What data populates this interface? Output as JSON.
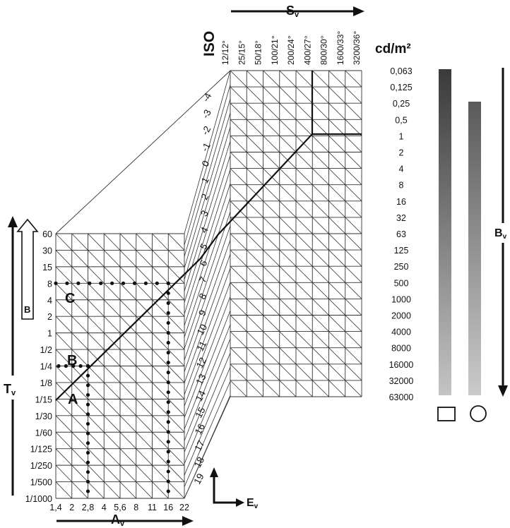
{
  "iso_heading": "ISO",
  "luminance_unit": "cd/m²",
  "iso_values": [
    "12/12°",
    "25/15°",
    "50/18°",
    "100/21°",
    "200/24°",
    "400/27°",
    "800/30°",
    "1600/33°",
    "3200/36°"
  ],
  "luminance_values": [
    "0,063",
    "0,125",
    "0,25",
    "0,5",
    "1",
    "2",
    "4",
    "8",
    "16",
    "32",
    "63",
    "125",
    "250",
    "500",
    "1000",
    "2000",
    "4000",
    "8000",
    "16000",
    "32000",
    "63000"
  ],
  "ev_values": [
    "-4",
    "-3",
    "-2",
    "-1",
    "0",
    "1",
    "2",
    "3",
    "4",
    "5",
    "6",
    "7",
    "8",
    "9",
    "10",
    "11",
    "12",
    "13",
    "14",
    "15",
    "16",
    "17",
    "18",
    "19"
  ],
  "time_values": [
    "60",
    "30",
    "15",
    "8",
    "4",
    "2",
    "1",
    "1/2",
    "1/4",
    "1/8",
    "1/15",
    "1/30",
    "1/60",
    "1/125",
    "1/250",
    "1/500",
    "1/1000"
  ],
  "aperture_values": [
    "1,4",
    "2",
    "2,8",
    "4",
    "5,6",
    "8",
    "11",
    "16",
    "22"
  ],
  "axis_labels": {
    "sv": "S",
    "av": "A",
    "tv": "T",
    "ev": "E",
    "bv": "B",
    "sub": "v"
  },
  "scale_letter": "B",
  "point_labels": [
    "A",
    "B",
    "C"
  ],
  "colors": {
    "ink": "#111111",
    "grid": "#333333",
    "gray_dark": "#3a3a3a",
    "gray_light": "#c4c4c4"
  },
  "meter_symbols": [
    "square-outline",
    "circle-outline"
  ]
}
